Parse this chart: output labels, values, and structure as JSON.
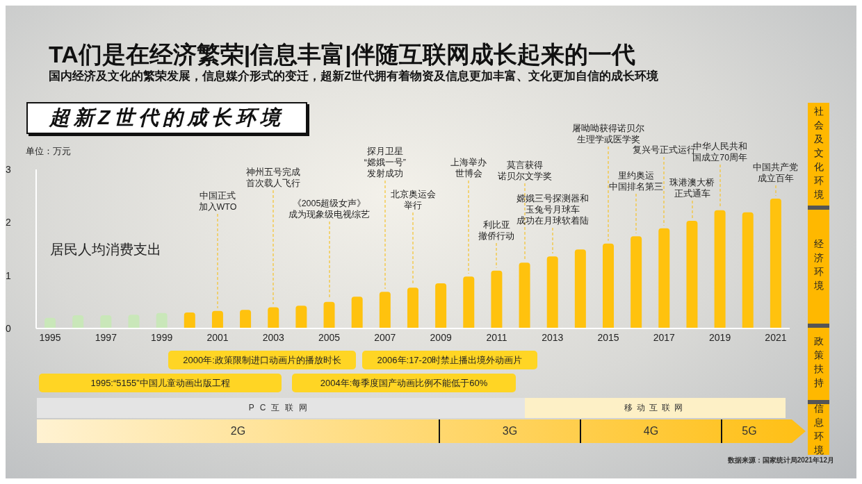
{
  "chart_data": {
    "type": "bar",
    "title": "TA们是在经济繁荣|信息丰富|伴随互联网成长起来的一代",
    "subtitle": "国内经济及文化的繁荣发展，信息媒介形式的变迁，超新Z世代拥有着物资及信息更加丰富、文化更加自信的成长环境",
    "ylabel": "单位：万元",
    "categories": [
      "1995",
      null,
      "1997",
      null,
      "1999",
      null,
      "2001",
      null,
      "2003",
      null,
      "2005",
      null,
      "2007",
      null,
      "2009",
      null,
      "2011",
      null,
      "2013",
      null,
      "2015",
      null,
      "2017",
      null,
      "2019",
      null,
      "2021"
    ],
    "values": [
      0.2,
      0.25,
      0.25,
      0.26,
      0.29,
      0.3,
      0.33,
      0.35,
      0.4,
      0.43,
      0.5,
      0.6,
      0.69,
      0.77,
      0.85,
      0.98,
      1.09,
      1.24,
      1.36,
      1.49,
      1.6,
      1.74,
      1.89,
      2.03,
      2.23,
      2.19,
      2.45
    ],
    "colors": [
      "#c9e7b9",
      "#c9e7b9",
      "#c9e7b9",
      "#c9e7b9",
      "#c9e7b9",
      "#ffc20e",
      "#ffc20e",
      "#ffc20e",
      "#ffc20e",
      "#ffc20e",
      "#ffc20e",
      "#ffc20e",
      "#ffc20e",
      "#ffc20e",
      "#ffc20e",
      "#ffc20e",
      "#ffc20e",
      "#ffc20e",
      "#ffc20e",
      "#ffc20e",
      "#ffc20e",
      "#ffc20e",
      "#ffc20e",
      "#ffc20e",
      "#ffc20e",
      "#ffc20e",
      "#ffc20e"
    ],
    "ylim": [
      0,
      3
    ],
    "yticks": [
      0,
      1,
      2,
      3
    ],
    "annotations": [
      "超新Z世代的成长环境",
      "居民人均消费支出",
      {
        "text": "中国正式加入WTO",
        "x": "2001",
        "y": 0.33
      },
      {
        "text": "神州五号完成首次载人飞行",
        "x": "2003",
        "y": 0.4
      },
      {
        "text": "《2005超级女声》成为现象级电视综艺",
        "x": "2005",
        "y": 0.5
      },
      {
        "text": "探月卫星“嫦娥一号”发射成功",
        "x": "2007",
        "y": 0.69
      },
      {
        "text": "北京奥运会举行",
        "y": 0.77
      },
      {
        "text": "上海举办世博会",
        "y": 0.98
      },
      {
        "text": "利比亚撤侨行动",
        "x": "2011",
        "y": 1.09
      },
      {
        "text": "莫言获得诺贝尔文学奖",
        "y": 1.24
      },
      {
        "text": "嫦娥三号探测器和玉兔号月球车成功在月球软着陆",
        "x": "2013",
        "y": 1.36
      },
      {
        "text": "屠呦呦获得诺贝尔生理学或医学奖",
        "x": "2015",
        "y": 1.6
      },
      {
        "text": "里约奥运中国排名第三",
        "y": 1.74
      },
      {
        "text": "复兴号正式运行",
        "x": "2017",
        "y": 1.89
      },
      {
        "text": "珠港澳大桥正式通车",
        "y": 2.03
      },
      {
        "text": "中华人民共和国成立70周年",
        "x": "2019",
        "y": 2.23
      },
      {
        "text": "中国共产党成立百年",
        "x": "2021",
        "y": 2.45
      },
      "2000年:政策限制进口动画片的播放时长",
      "2006年:17-20时禁止播出境外动画片",
      "1995:“5155”中国儿童动画出版工程",
      "2004年:每季度国产动画比例不能低于60%",
      "PC互联网",
      "移动互联网",
      "2G",
      "3G",
      "4G",
      "5G",
      "社会及文化环境",
      "经济环境",
      "政策扶持",
      "信息环境",
      "数据来源：国家统计局2021年12月"
    ]
  }
}
